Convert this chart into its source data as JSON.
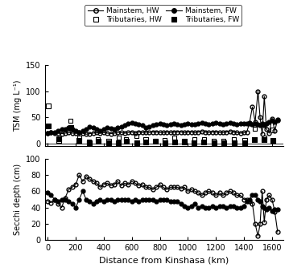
{
  "tsm_mainstem_hw_x": [
    0,
    25,
    50,
    75,
    100,
    125,
    150,
    175,
    200,
    225,
    250,
    275,
    300,
    325,
    350,
    375,
    400,
    425,
    450,
    475,
    500,
    525,
    550,
    575,
    600,
    625,
    650,
    675,
    700,
    725,
    750,
    775,
    800,
    825,
    850,
    875,
    900,
    925,
    950,
    975,
    1000,
    1025,
    1050,
    1075,
    1100,
    1125,
    1150,
    1175,
    1200,
    1225,
    1250,
    1275,
    1300,
    1325,
    1350,
    1375,
    1400,
    1420,
    1440,
    1460,
    1480,
    1500,
    1515,
    1530,
    1545,
    1560,
    1580,
    1600,
    1620,
    1640
  ],
  "tsm_mainstem_hw_y": [
    20,
    21,
    20,
    20,
    19,
    20,
    21,
    20,
    20,
    21,
    20,
    18,
    19,
    20,
    21,
    20,
    21,
    20,
    19,
    20,
    21,
    21,
    20,
    21,
    22,
    20,
    22,
    21,
    22,
    21,
    22,
    22,
    21,
    21,
    22,
    21,
    22,
    22,
    22,
    21,
    22,
    22,
    21,
    22,
    23,
    22,
    21,
    22,
    22,
    21,
    21,
    22,
    23,
    22,
    21,
    20,
    21,
    22,
    40,
    70,
    42,
    100,
    50,
    18,
    90,
    28,
    20,
    48,
    25,
    45
  ],
  "tsm_mainstem_fw_x": [
    0,
    25,
    50,
    75,
    100,
    125,
    150,
    175,
    200,
    225,
    250,
    275,
    300,
    325,
    350,
    375,
    400,
    425,
    450,
    475,
    500,
    525,
    550,
    575,
    600,
    625,
    650,
    675,
    700,
    725,
    750,
    775,
    800,
    825,
    850,
    875,
    900,
    925,
    950,
    975,
    1000,
    1025,
    1050,
    1075,
    1100,
    1125,
    1150,
    1175,
    1200,
    1225,
    1250,
    1275,
    1300,
    1325,
    1350,
    1375,
    1400,
    1420,
    1440,
    1460,
    1480,
    1500,
    1515,
    1530,
    1545,
    1560,
    1580,
    1600,
    1620,
    1640
  ],
  "tsm_mainstem_fw_y": [
    20,
    22,
    22,
    25,
    28,
    28,
    30,
    28,
    25,
    22,
    25,
    28,
    32,
    30,
    28,
    25,
    28,
    30,
    29,
    28,
    30,
    32,
    35,
    38,
    40,
    38,
    36,
    35,
    30,
    32,
    35,
    36,
    38,
    36,
    35,
    37,
    38,
    36,
    35,
    37,
    38,
    37,
    36,
    38,
    40,
    38,
    37,
    38,
    40,
    38,
    37,
    38,
    40,
    38,
    37,
    38,
    38,
    38,
    38,
    36,
    38,
    36,
    35,
    38,
    35,
    38,
    42,
    44,
    42,
    46
  ],
  "tsm_trib_hw_x": [
    5,
    80,
    165,
    225,
    295,
    360,
    435,
    505,
    560,
    635,
    700,
    770,
    835,
    905,
    975,
    1045,
    1115,
    1185,
    1255,
    1330,
    1405,
    1475,
    1545,
    1605
  ],
  "tsm_trib_hw_y": [
    72,
    6,
    44,
    12,
    4,
    9,
    5,
    11,
    8,
    14,
    9,
    5,
    7,
    11,
    6,
    9,
    8,
    6,
    5,
    9,
    7,
    28,
    11,
    26
  ],
  "tsm_trib_fw_x": [
    5,
    80,
    165,
    225,
    295,
    360,
    435,
    505,
    560,
    635,
    700,
    770,
    835,
    905,
    975,
    1045,
    1115,
    1185,
    1255,
    1330,
    1405,
    1475,
    1545,
    1605
  ],
  "tsm_trib_fw_y": [
    34,
    9,
    30,
    6,
    1,
    4,
    1,
    2,
    4,
    2,
    3,
    4,
    2,
    3,
    3,
    2,
    3,
    2,
    2,
    2,
    2,
    8,
    7,
    6
  ],
  "secchi_mainstem_hw_x": [
    0,
    25,
    50,
    75,
    100,
    125,
    150,
    175,
    200,
    225,
    250,
    275,
    300,
    325,
    350,
    375,
    400,
    425,
    450,
    475,
    500,
    525,
    550,
    575,
    600,
    625,
    650,
    675,
    700,
    725,
    750,
    775,
    800,
    825,
    850,
    875,
    900,
    925,
    950,
    975,
    1000,
    1025,
    1050,
    1075,
    1100,
    1125,
    1150,
    1175,
    1200,
    1225,
    1250,
    1275,
    1300,
    1325,
    1350,
    1375,
    1400,
    1420,
    1440,
    1460,
    1480,
    1500,
    1515,
    1530,
    1545,
    1560,
    1580,
    1600,
    1620,
    1640
  ],
  "secchi_mainstem_hw_y": [
    48,
    46,
    50,
    45,
    40,
    52,
    62,
    65,
    68,
    80,
    72,
    78,
    75,
    72,
    70,
    65,
    68,
    70,
    67,
    68,
    72,
    67,
    70,
    68,
    72,
    70,
    67,
    68,
    65,
    65,
    62,
    65,
    68,
    65,
    62,
    65,
    65,
    65,
    63,
    65,
    60,
    62,
    60,
    58,
    55,
    58,
    60,
    58,
    55,
    58,
    55,
    58,
    60,
    58,
    55,
    55,
    50,
    50,
    48,
    45,
    20,
    5,
    20,
    60,
    22,
    50,
    55,
    50,
    35,
    10
  ],
  "secchi_mainstem_fw_x": [
    0,
    25,
    50,
    75,
    100,
    125,
    150,
    175,
    200,
    225,
    250,
    275,
    300,
    325,
    350,
    375,
    400,
    425,
    450,
    475,
    500,
    525,
    550,
    575,
    600,
    625,
    650,
    675,
    700,
    725,
    750,
    775,
    800,
    825,
    850,
    875,
    900,
    925,
    950,
    975,
    1000,
    1025,
    1050,
    1075,
    1100,
    1125,
    1150,
    1175,
    1200,
    1225,
    1250,
    1275,
    1300,
    1325,
    1350,
    1375,
    1400,
    1420,
    1440,
    1460,
    1480,
    1500,
    1515,
    1530,
    1545,
    1560,
    1580,
    1600,
    1620,
    1640
  ],
  "secchi_mainstem_fw_y": [
    58,
    55,
    50,
    48,
    50,
    50,
    48,
    45,
    40,
    50,
    60,
    50,
    48,
    45,
    48,
    50,
    48,
    50,
    50,
    48,
    50,
    50,
    50,
    50,
    48,
    50,
    48,
    50,
    50,
    50,
    50,
    48,
    50,
    50,
    50,
    48,
    48,
    48,
    45,
    42,
    40,
    42,
    45,
    40,
    42,
    40,
    40,
    42,
    40,
    42,
    42,
    40,
    42,
    42,
    40,
    40,
    42,
    48,
    50,
    55,
    55,
    50,
    48,
    42,
    40,
    38,
    40,
    36,
    38,
    38
  ],
  "tsm_ylim": [
    -5,
    150
  ],
  "tsm_yticks": [
    0,
    50,
    100,
    150
  ],
  "secchi_ylim": [
    0,
    100
  ],
  "secchi_yticks": [
    0,
    20,
    40,
    60,
    80,
    100
  ],
  "xlim": [
    -20,
    1680
  ],
  "xticks": [
    0,
    200,
    400,
    600,
    800,
    1000,
    1200,
    1400,
    1600
  ],
  "xlabel": "Distance from Kinshasa (km)",
  "tsm_ylabel": "TSM (mg L⁻¹)",
  "secchi_ylabel": "Secchi depth (cm)",
  "linewidth": 0.8,
  "markersize": 3.5,
  "marker_sq_size": 14
}
